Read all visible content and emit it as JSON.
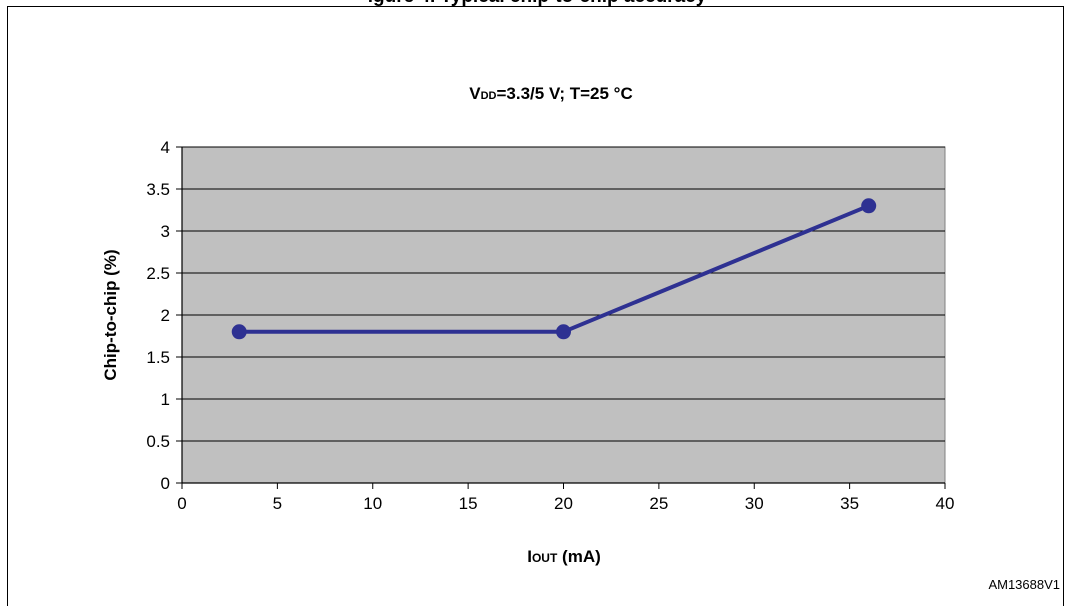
{
  "figure_caption_partial": "igure 4. Typical chip-to-chip accuracy",
  "figure_id": "AM13688V1",
  "chart_data": {
    "type": "line",
    "subtitle": {
      "prefix": "V",
      "subscript": "DD",
      "suffix": "=3.3/5 V; T=25  °C"
    },
    "xlabel": {
      "prefix": "I",
      "subscript": "OUT",
      "suffix": " (mA)"
    },
    "ylabel": "Chip-to-chip (%)",
    "xlim": [
      0,
      40
    ],
    "ylim": [
      0,
      4
    ],
    "x_ticks": [
      "0",
      "5",
      "10",
      "15",
      "20",
      "25",
      "30",
      "35",
      "40"
    ],
    "y_ticks": [
      "0",
      "0.5",
      "1",
      "1.5",
      "2",
      "2.5",
      "3",
      "3.5",
      "4"
    ],
    "grid": "horizontal",
    "plot_background": "#c0c0c0",
    "series": [
      {
        "color": "#2e3192",
        "x": [
          3,
          20,
          36
        ],
        "y": [
          1.8,
          1.8,
          3.3
        ]
      }
    ]
  }
}
